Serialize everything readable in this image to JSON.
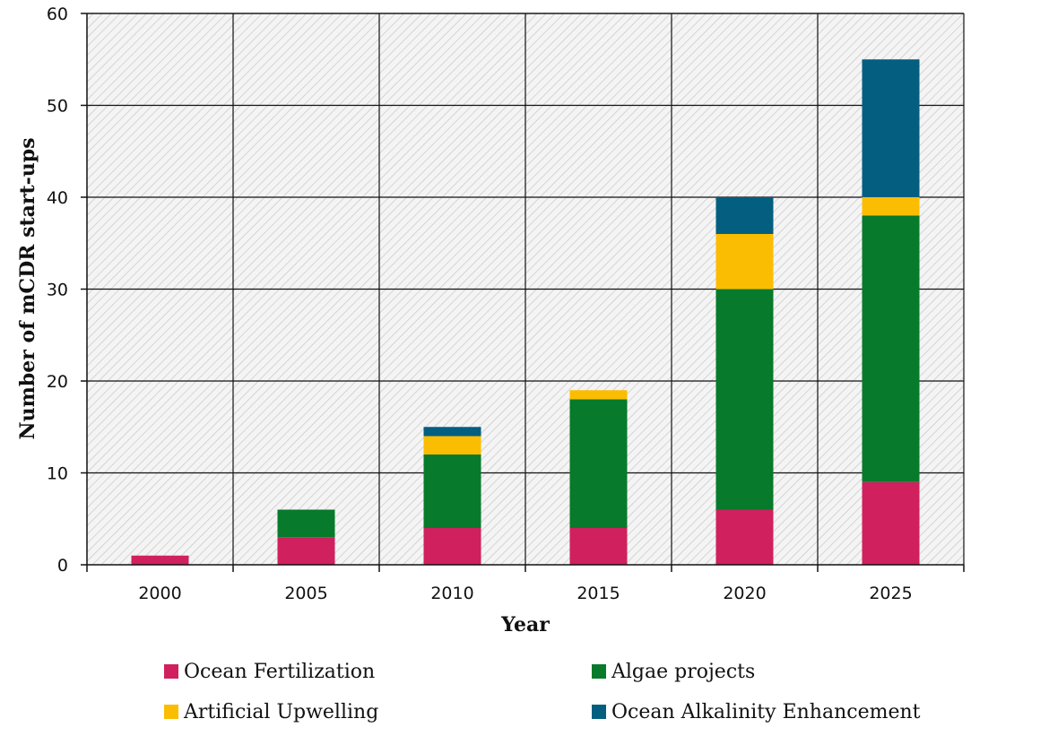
{
  "chart_data": {
    "type": "bar",
    "stacked": true,
    "title": "",
    "xlabel": "Year",
    "ylabel": "Number of mCDR start-ups",
    "ylim": [
      0,
      60
    ],
    "yticks": [
      0,
      10,
      20,
      30,
      40,
      50,
      60
    ],
    "grid": true,
    "legend_position": "bottom",
    "categories": [
      "2000",
      "2005",
      "2010",
      "2015",
      "2020",
      "2025"
    ],
    "series": [
      {
        "name": "Ocean Fertilization",
        "color": "#d0205e",
        "values": [
          1,
          3,
          4,
          4,
          6,
          9
        ]
      },
      {
        "name": "Algae projects",
        "color": "#077a2b",
        "values": [
          0,
          3,
          8,
          14,
          24,
          29
        ]
      },
      {
        "name": "Artificial Upwelling",
        "color": "#fbbd01",
        "values": [
          0,
          0,
          2,
          1,
          6,
          2
        ]
      },
      {
        "name": "Ocean Alkalinity Enhancement",
        "color": "#045e80",
        "values": [
          0,
          0,
          1,
          0,
          4,
          15
        ]
      }
    ]
  }
}
